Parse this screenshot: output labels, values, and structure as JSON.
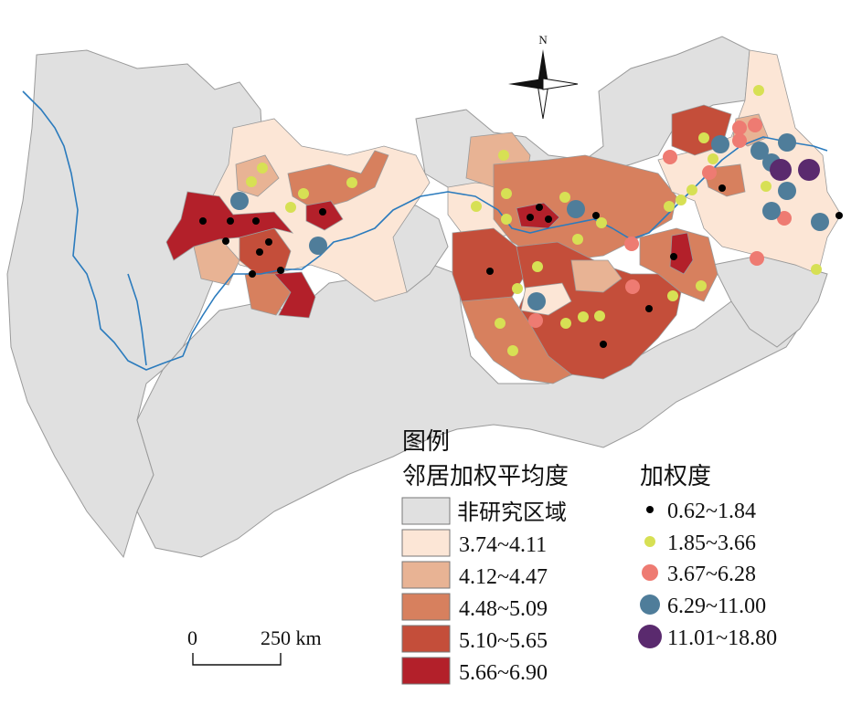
{
  "compass": {
    "label": "N"
  },
  "scalebar": {
    "start_label": "0",
    "end_label": "250 km"
  },
  "legend": {
    "title": "图例",
    "fill_title": "邻居加权平均度",
    "fill_classes": [
      {
        "label": "非研究区域",
        "color": "#e0e0e0"
      },
      {
        "label": "3.74~4.11",
        "color": "#fce6d6"
      },
      {
        "label": "4.12~4.47",
        "color": "#e8b394"
      },
      {
        "label": "4.48~5.09",
        "color": "#d7805e"
      },
      {
        "label": "5.10~5.65",
        "color": "#c44e3a"
      },
      {
        "label": "5.66~6.90",
        "color": "#b3202a"
      }
    ],
    "point_title": "加权度",
    "point_classes": [
      {
        "label": "0.62~1.84",
        "color": "#000000"
      },
      {
        "label": "1.85~3.66",
        "color": "#d7e054"
      },
      {
        "label": "3.67~6.28",
        "color": "#ee7b72"
      },
      {
        "label": "6.29~11.00",
        "color": "#4f7d9a"
      },
      {
        "label": "11.01~18.80",
        "color": "#5a2a6e"
      }
    ]
  },
  "colors": {
    "river": "#2b7bbd",
    "boundary": "#9a9a9a"
  }
}
